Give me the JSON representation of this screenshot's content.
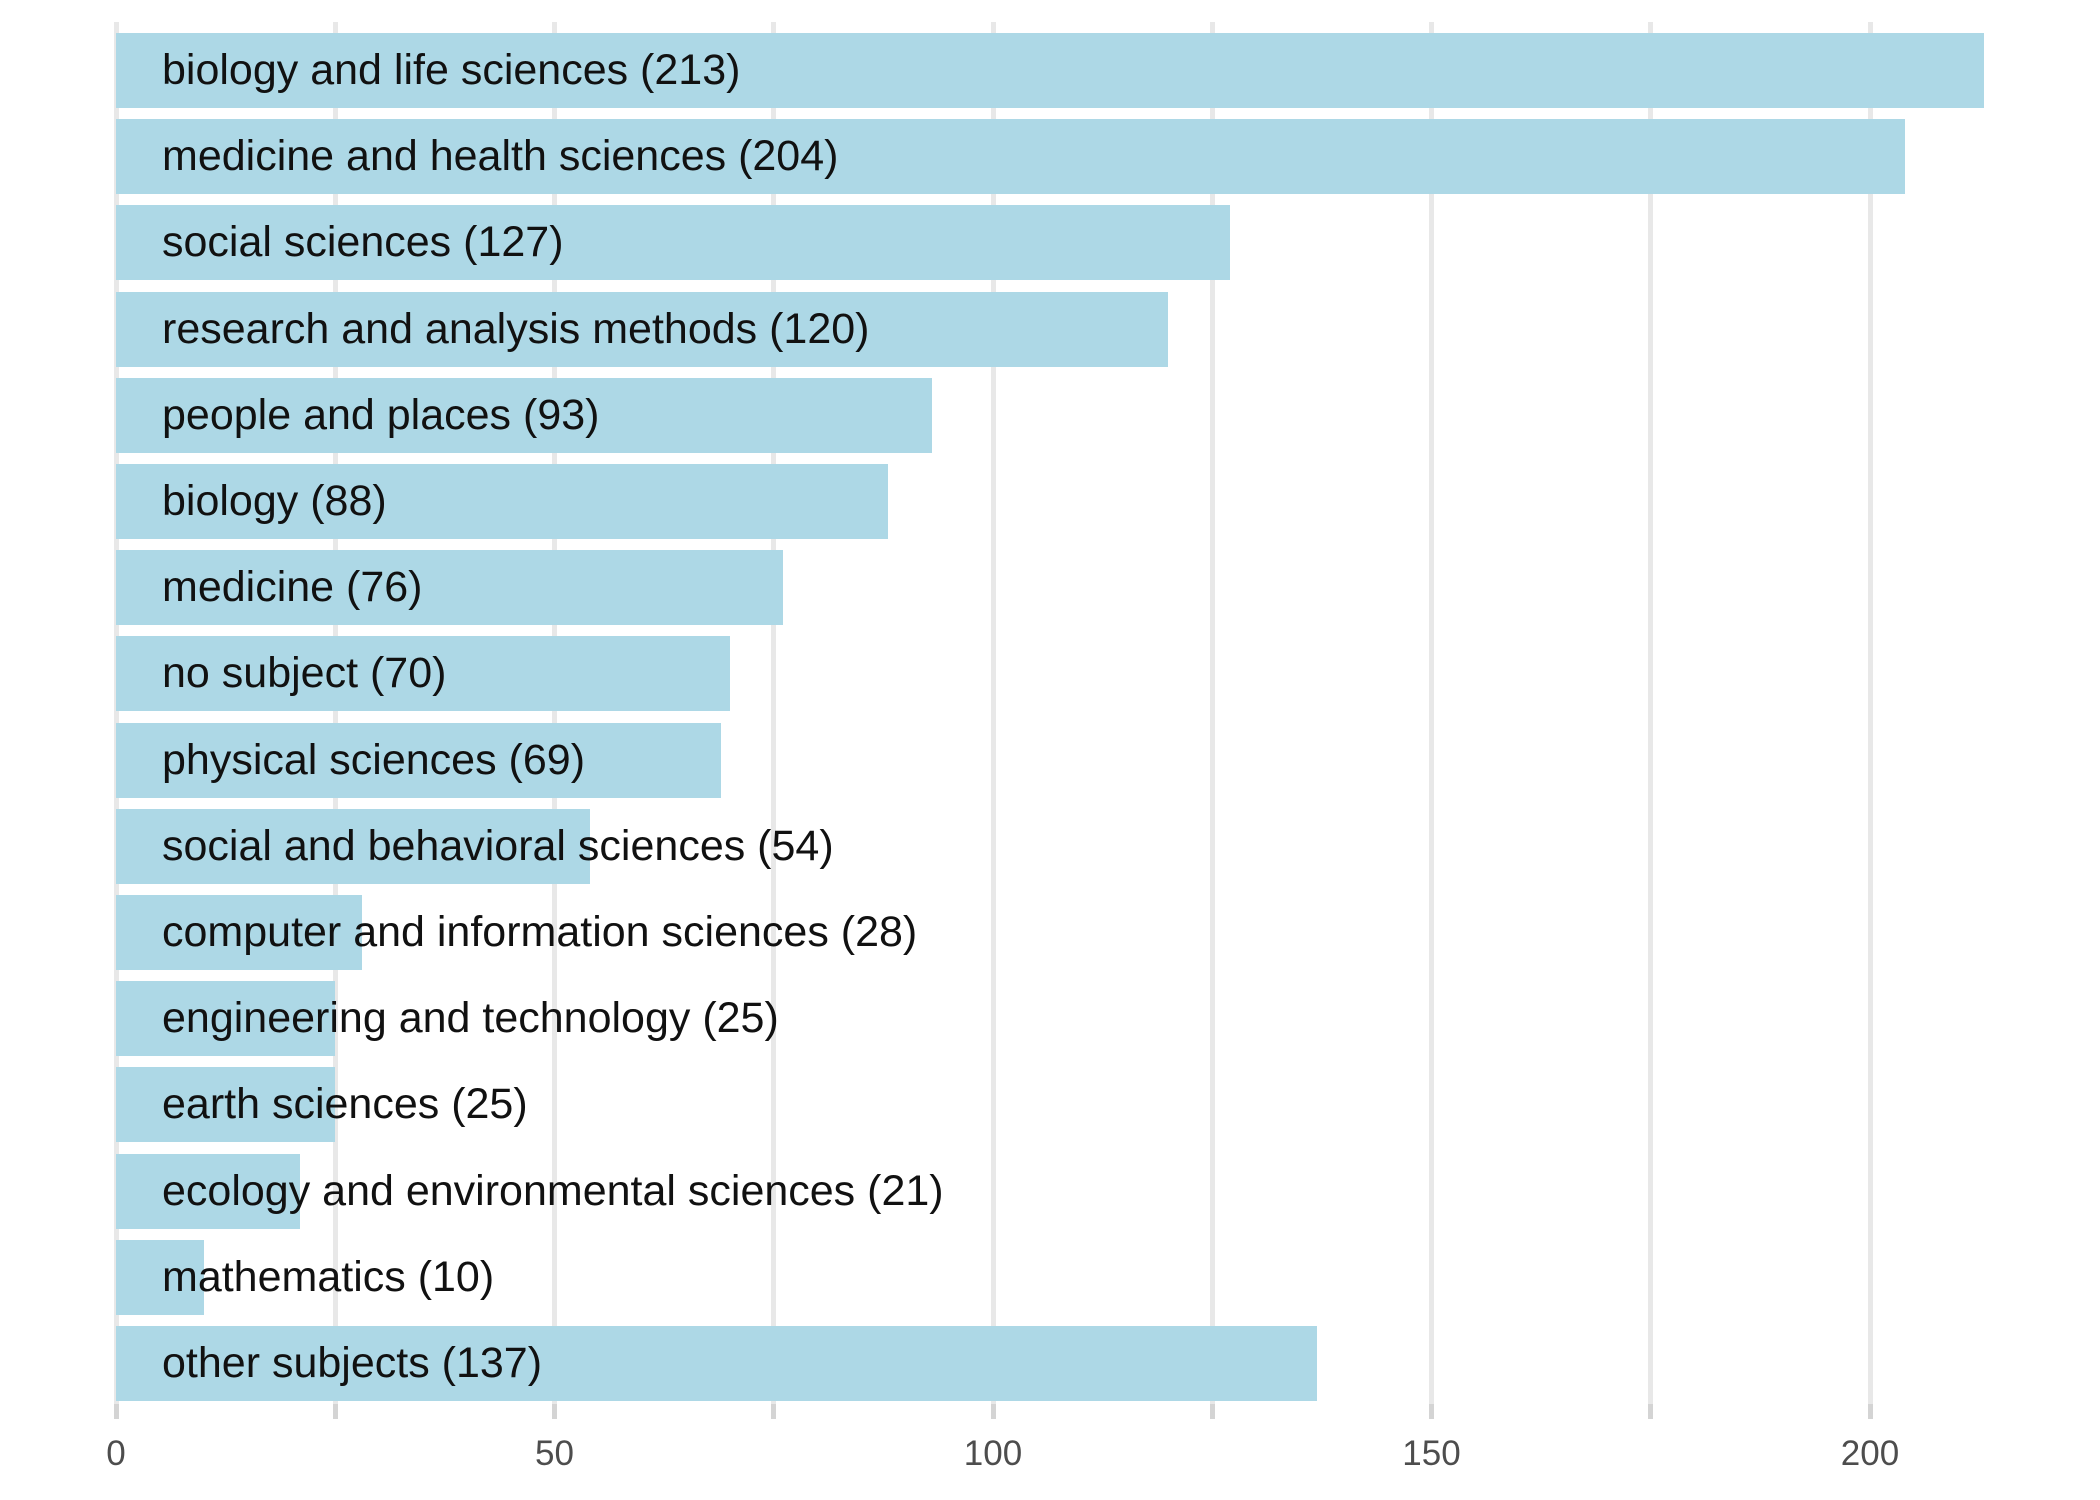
{
  "chart_data": {
    "type": "bar",
    "orientation": "horizontal",
    "title": "",
    "xlabel": "",
    "ylabel": "",
    "categories": [
      "biology and life sciences",
      "medicine and health sciences",
      "social sciences",
      "research and analysis methods",
      "people and places",
      "biology",
      "medicine",
      "no subject",
      "physical sciences",
      "social and behavioral sciences",
      "computer and information sciences",
      "engineering and technology",
      "earth sciences",
      "ecology and environmental sciences",
      "mathematics",
      "other subjects"
    ],
    "values": [
      213,
      204,
      127,
      120,
      93,
      88,
      76,
      70,
      69,
      54,
      28,
      25,
      25,
      21,
      10,
      137
    ],
    "bar_display_labels": [
      "biology and life sciences (213)",
      "medicine and health sciences (204)",
      "social sciences (127)",
      "research and analysis methods (120)",
      "people and places (93)",
      "biology (88)",
      "medicine (76)",
      "no subject (70)",
      "physical sciences (69)",
      "social and behavioral sciences (54)",
      "computer and information sciences (28)",
      "engineering and technology (25)",
      "earth sciences (25)",
      "ecology and environmental sciences (21)",
      "mathematics (10)",
      "other subjects (137)"
    ],
    "xlim": [
      0,
      226
    ],
    "x_tick_values": [
      0,
      25,
      50,
      75,
      100,
      125,
      150,
      175,
      200
    ],
    "x_labeled_ticks": [
      {
        "v": 0,
        "text": "0"
      },
      {
        "v": 50,
        "text": "50"
      },
      {
        "v": 100,
        "text": "100"
      },
      {
        "v": 150,
        "text": "150"
      },
      {
        "v": 200,
        "text": "200"
      }
    ],
    "grid": "vertical gridlines every 25 units",
    "legend": "none",
    "colors": {
      "bar_fill": "#ADD8E6",
      "gridline": "#E8E8E8",
      "tick_mark": "#D4D4D4",
      "tick_label_text": "#4D4D4D",
      "bar_label_text": "#111111",
      "background": "#FFFFFF"
    }
  }
}
